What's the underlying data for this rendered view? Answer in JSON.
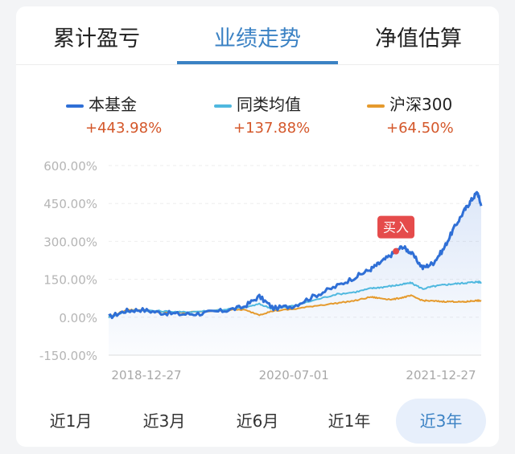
{
  "tabs": [
    "累计盈亏",
    "业绩走势",
    "净值估算"
  ],
  "active_tab": "业绩走势",
  "legend": [
    {
      "name": "本基金",
      "value": "+443.98%",
      "color": "#2f6fd6"
    },
    {
      "name": "同类均值",
      "value": "+137.88%",
      "color": "#4fb8df"
    },
    {
      "name": "沪深300",
      "value": "+64.50%",
      "color": "#e59a2d"
    }
  ],
  "buy_marker": {
    "label": "买入",
    "date": "2021-05"
  },
  "ranges": [
    "近1月",
    "近3月",
    "近6月",
    "近1年",
    "近3年"
  ],
  "active_range": "近3年",
  "chart_data": {
    "type": "line",
    "y_ticks": [
      "600.00%",
      "450.00%",
      "300.00%",
      "150.00%",
      "0.00%",
      "-150.00%"
    ],
    "x_ticks": [
      "2018-12-27",
      "2020-07-01",
      "2021-12-27"
    ],
    "ylim": [
      -150,
      600
    ],
    "xlim": [
      "2018-12-27",
      "2022-01-10"
    ],
    "series": [
      {
        "name": "本基金",
        "color": "#2f6fd6",
        "x": [
          "2018-12-27",
          "2019-02-15",
          "2019-04-01",
          "2019-06-01",
          "2019-08-01",
          "2019-10-01",
          "2019-12-01",
          "2020-02-01",
          "2020-03-20",
          "2020-05-01",
          "2020-07-01",
          "2020-09-01",
          "2020-11-01",
          "2021-01-01",
          "2021-02-15",
          "2021-03-15",
          "2021-04-20",
          "2021-05-20",
          "2021-06-15",
          "2021-07-20",
          "2021-08-20",
          "2021-09-20",
          "2021-10-20",
          "2021-11-20",
          "2021-12-10",
          "2021-12-30",
          "2022-01-10"
        ],
        "values": [
          0,
          25,
          30,
          18,
          12,
          15,
          25,
          40,
          82,
          35,
          45,
          85,
          120,
          160,
          190,
          215,
          250,
          280,
          255,
          195,
          215,
          270,
          350,
          420,
          460,
          495,
          440
        ]
      },
      {
        "name": "同类均值",
        "color": "#4fb8df",
        "x": [
          "2018-12-27",
          "2019-02-15",
          "2019-04-01",
          "2019-06-01",
          "2019-08-01",
          "2019-10-01",
          "2019-12-01",
          "2020-02-01",
          "2020-03-20",
          "2020-05-01",
          "2020-07-01",
          "2020-09-01",
          "2020-11-01",
          "2021-01-01",
          "2021-02-15",
          "2021-03-15",
          "2021-04-20",
          "2021-05-20",
          "2021-06-15",
          "2021-07-20",
          "2021-08-20",
          "2021-09-20",
          "2021-10-20",
          "2021-11-20",
          "2021-12-10",
          "2021-12-30",
          "2022-01-10"
        ],
        "values": [
          0,
          22,
          28,
          24,
          20,
          24,
          30,
          38,
          52,
          32,
          46,
          68,
          90,
          100,
          114,
          118,
          124,
          130,
          136,
          112,
          122,
          128,
          132,
          135,
          138,
          140,
          138
        ]
      },
      {
        "name": "沪深300",
        "color": "#e59a2d",
        "x": [
          "2018-12-27",
          "2019-02-15",
          "2019-04-01",
          "2019-06-01",
          "2019-08-01",
          "2019-10-01",
          "2019-12-01",
          "2020-02-01",
          "2020-03-20",
          "2020-05-01",
          "2020-07-01",
          "2020-09-01",
          "2020-11-01",
          "2021-01-01",
          "2021-02-15",
          "2021-03-15",
          "2021-04-20",
          "2021-05-20",
          "2021-06-15",
          "2021-07-20",
          "2021-08-20",
          "2021-09-20",
          "2021-10-20",
          "2021-11-20",
          "2021-12-10",
          "2021-12-30",
          "2022-01-10"
        ],
        "values": [
          0,
          28,
          30,
          20,
          18,
          22,
          28,
          30,
          10,
          25,
          32,
          45,
          55,
          66,
          80,
          75,
          70,
          78,
          85,
          66,
          64,
          62,
          62,
          60,
          64,
          66,
          64
        ]
      }
    ]
  }
}
